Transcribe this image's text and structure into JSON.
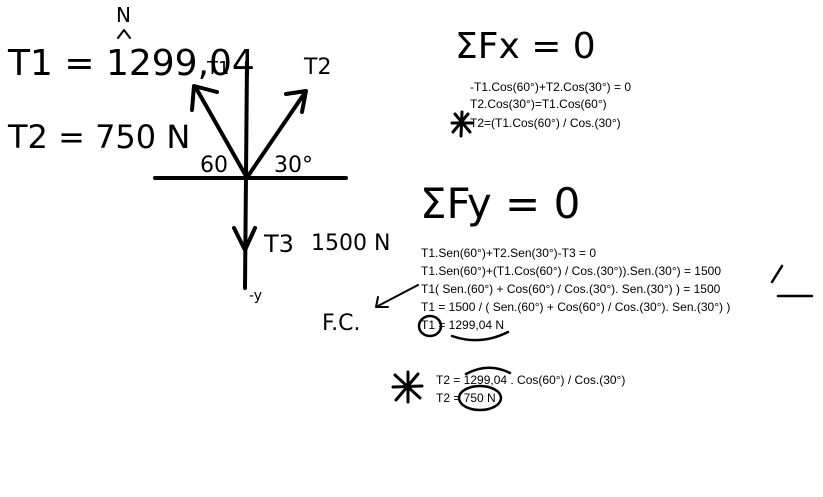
{
  "handwritten": {
    "north_label": "N",
    "t1_result": "T1 = 1299,04",
    "t1_vector_label": "T1",
    "t2_vector_label": "T2",
    "t2_result": "T2 = 750 N",
    "angle_left": "60",
    "angle_right": "30°",
    "t3_label": "T3",
    "t3_value": "1500 N",
    "down_axis": "-y",
    "fc_label": "F.C.",
    "sum_fx": "ΣFx = 0",
    "sum_fy": "ΣFy = 0"
  },
  "fx_equations": [
    "-T1.Cos(60°)+T2.Cos(30°) = 0",
    "T2.Cos(30°)=T1.Cos(60°)",
    "T2=(T1.Cos(60°) / Cos.(30°)"
  ],
  "fy_equations": [
    "T1.Sen(60°)+T2.Sen(30°)-T3 = 0",
    "T1.Sen(60°)+(T1.Cos(60°) / Cos.(30°)).Sen.(30°) = 1500",
    "T1( Sen.(60°) + Cos(60°) / Cos.(30°). Sen.(30°) ) = 1500",
    "T1 = 1500 / ( Sen.(60°) + Cos(60°) / Cos.(30°). Sen.(30°) )",
    "T1 = 1299,04 N"
  ],
  "t2_equations": [
    "T2 = 1299,04 . Cos(60°) / Cos.(30°)",
    "T2 = 750 N"
  ]
}
